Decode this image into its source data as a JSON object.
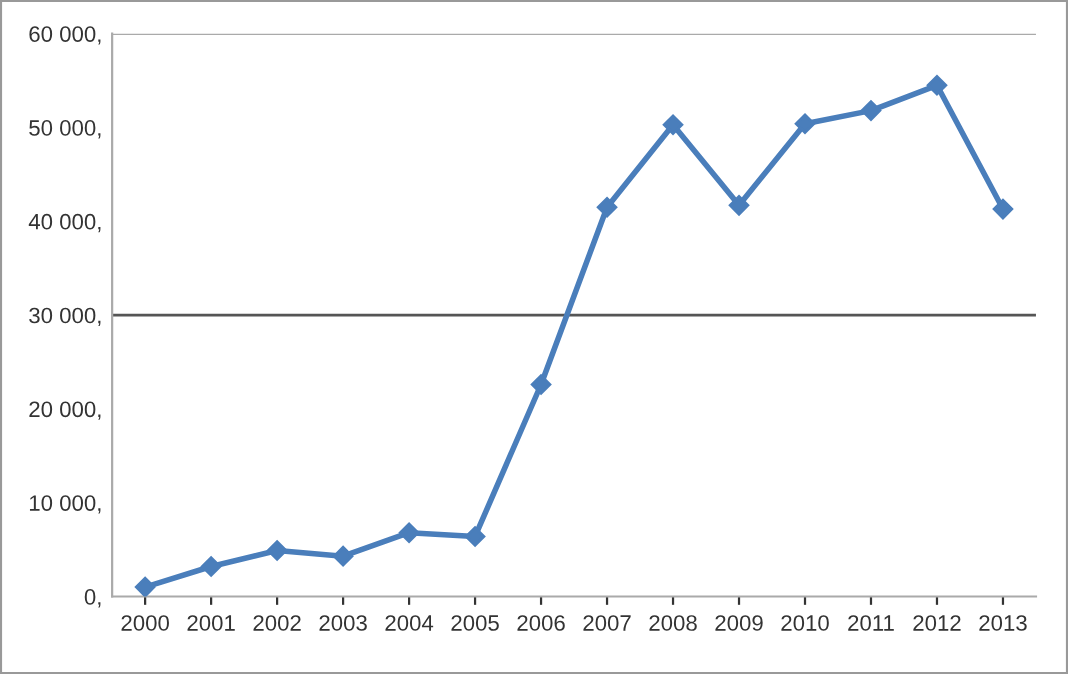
{
  "chart_data": {
    "type": "line",
    "categories": [
      "2000",
      "2001",
      "2002",
      "2003",
      "2004",
      "2005",
      "2006",
      "2007",
      "2008",
      "2009",
      "2010",
      "2011",
      "2012",
      "2013"
    ],
    "series": [
      {
        "color": "#4a7ebb",
        "values": [
          1000,
          3200,
          4900,
          4300,
          6800,
          6400,
          22600,
          41500,
          50300,
          41700,
          50400,
          51800,
          54500,
          41300
        ]
      }
    ],
    "ylim": [
      0,
      60000
    ],
    "yticks": [
      {
        "value": 0,
        "label": "0,"
      },
      {
        "value": 10000,
        "label": "10 000,"
      },
      {
        "value": 20000,
        "label": "20 000,"
      },
      {
        "value": 30000,
        "label": "30 000,"
      },
      {
        "value": 40000,
        "label": "40 000,"
      },
      {
        "value": 50000,
        "label": "50 000,"
      },
      {
        "value": 60000,
        "label": "60 000,"
      }
    ],
    "ref_lines": [
      {
        "axis": "y",
        "value": 30000,
        "color": "#555555"
      },
      {
        "axis": "y",
        "value": 60000,
        "color": "#aaaaaa"
      }
    ],
    "grid": false,
    "legend": false,
    "marker": "diamond",
    "line_style": "solid"
  }
}
